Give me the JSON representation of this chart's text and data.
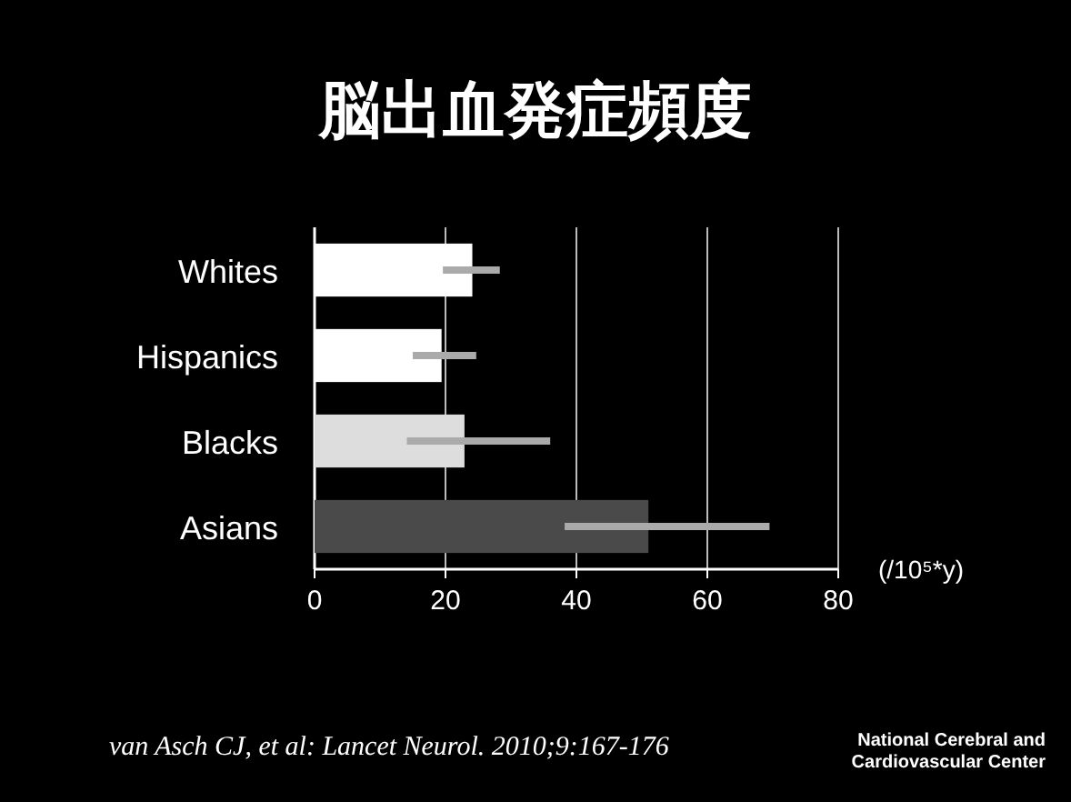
{
  "chart_data": {
    "type": "bar",
    "orientation": "horizontal",
    "title": "脳出血発症頻度",
    "xlabel": "(/10⁵*y)",
    "categories": [
      "Whites",
      "Hispanics",
      "Blacks",
      "Asians"
    ],
    "values": [
      24.1,
      19.4,
      22.9,
      51
    ],
    "colors": [
      "#ffffff",
      "#ffffff",
      "#dddddd",
      "#4a4a4a"
    ],
    "errors": [
      [
        19.6,
        28.3
      ],
      [
        15,
        24.7
      ],
      [
        14.1,
        36
      ],
      [
        38.2,
        69.5
      ]
    ],
    "xlim": [
      0,
      80
    ],
    "xticks": [
      0,
      20,
      40,
      60,
      80
    ],
    "grid": "x",
    "annotations": [
      "van Asch CJ, et al: Lancet Neurol. 2010;9:167-176",
      "National Cerebral and Cardiovascular Center"
    ]
  }
}
